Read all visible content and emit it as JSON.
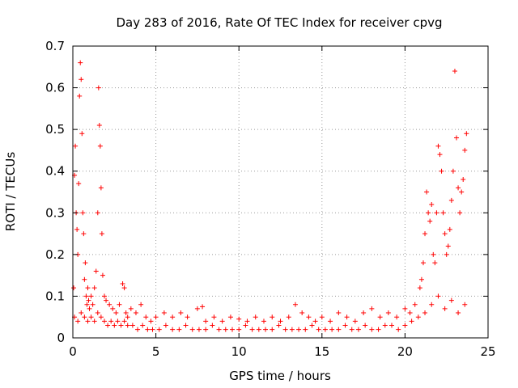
{
  "chart_data": {
    "type": "scatter",
    "title": "Day 283 of 2016, Rate Of TEC Index for receiver cpvg",
    "xlabel": "GPS time / hours",
    "ylabel": "ROTI / TECUs",
    "xlim": [
      0,
      25
    ],
    "ylim": [
      0,
      0.7
    ],
    "xticks": [
      "0",
      "5",
      "10",
      "15",
      "20",
      "25"
    ],
    "yticks": [
      "0",
      "0.1",
      "0.2",
      "0.3",
      "0.4",
      "0.5",
      "0.6",
      "0.7"
    ],
    "grid": true,
    "marker": "+",
    "color": "#ff0000",
    "series": [
      {
        "x": [
          0.05,
          0.1,
          0.15,
          0.2,
          0.25,
          0.3,
          0.35,
          0.4,
          0.45,
          0.5,
          0.55,
          0.6,
          0.65,
          0.7,
          0.75,
          0.8,
          0.85,
          0.9,
          0.95,
          1.0,
          1.1,
          1.2,
          1.3,
          1.4,
          1.5,
          1.55,
          1.6,
          1.65,
          1.7,
          1.75,
          1.8,
          1.9,
          2.0,
          2.2,
          2.4,
          2.6,
          2.8,
          3.0,
          3.1,
          3.2,
          3.3,
          3.5,
          3.8,
          4.1,
          4.4,
          4.7,
          5.0,
          5.5,
          6.0,
          6.5,
          6.9,
          7.5,
          7.8,
          8.0,
          8.5,
          9.0,
          9.5,
          10.0,
          10.5,
          11.0,
          11.5,
          12.0,
          12.5,
          13.0,
          13.4,
          13.8,
          14.2,
          14.6,
          15.0,
          15.5,
          16.0,
          16.5,
          17.0,
          17.5,
          18.0,
          18.5,
          19.0,
          19.5,
          20.0,
          20.3,
          20.6,
          20.9,
          21.0,
          21.1,
          21.2,
          21.3,
          21.4,
          21.5,
          21.6,
          21.7,
          21.8,
          21.9,
          22.0,
          22.1,
          22.2,
          22.3,
          22.4,
          22.5,
          22.6,
          22.7,
          22.8,
          22.9,
          23.0,
          23.1,
          23.2,
          23.3,
          23.4,
          23.5,
          23.6,
          23.7
        ],
        "y": [
          0.12,
          0.39,
          0.46,
          0.3,
          0.26,
          0.2,
          0.37,
          0.58,
          0.66,
          0.62,
          0.49,
          0.3,
          0.25,
          0.14,
          0.18,
          0.1,
          0.08,
          0.12,
          0.09,
          0.07,
          0.1,
          0.08,
          0.12,
          0.16,
          0.3,
          0.6,
          0.51,
          0.46,
          0.36,
          0.25,
          0.15,
          0.1,
          0.09,
          0.08,
          0.07,
          0.06,
          0.08,
          0.13,
          0.12,
          0.06,
          0.05,
          0.07,
          0.06,
          0.08,
          0.05,
          0.04,
          0.05,
          0.06,
          0.05,
          0.06,
          0.05,
          0.07,
          0.075,
          0.04,
          0.05,
          0.04,
          0.05,
          0.045,
          0.04,
          0.05,
          0.04,
          0.05,
          0.04,
          0.05,
          0.08,
          0.06,
          0.05,
          0.04,
          0.05,
          0.04,
          0.06,
          0.05,
          0.04,
          0.06,
          0.07,
          0.05,
          0.06,
          0.05,
          0.07,
          0.06,
          0.08,
          0.12,
          0.14,
          0.18,
          0.25,
          0.35,
          0.3,
          0.28,
          0.32,
          0.2,
          0.18,
          0.3,
          0.46,
          0.44,
          0.4,
          0.3,
          0.25,
          0.2,
          0.22,
          0.26,
          0.33,
          0.4,
          0.64,
          0.48,
          0.36,
          0.3,
          0.35,
          0.38,
          0.45,
          0.49
        ]
      },
      {
        "x": [
          0.1,
          0.3,
          0.5,
          0.7,
          0.9,
          1.1,
          1.3,
          1.5,
          1.7,
          1.9,
          2.1,
          2.3,
          2.5,
          2.7,
          2.9,
          3.1,
          3.3,
          3.6,
          3.9,
          4.2,
          4.5,
          4.8,
          5.2,
          5.6,
          6.0,
          6.4,
          6.8,
          7.2,
          7.6,
          8.0,
          8.4,
          8.8,
          9.2,
          9.6,
          10.0,
          10.4,
          10.8,
          11.2,
          11.6,
          12.0,
          12.4,
          12.8,
          13.2,
          13.6,
          14.0,
          14.4,
          14.8,
          15.2,
          15.6,
          16.0,
          16.4,
          16.8,
          17.2,
          17.6,
          18.0,
          18.4,
          18.8,
          19.2,
          19.6,
          20.0,
          20.4,
          20.8,
          21.2,
          21.6,
          22.0,
          22.4,
          22.8,
          23.2,
          23.6
        ],
        "y": [
          0.05,
          0.04,
          0.06,
          0.05,
          0.04,
          0.05,
          0.04,
          0.06,
          0.05,
          0.04,
          0.03,
          0.04,
          0.03,
          0.04,
          0.03,
          0.04,
          0.03,
          0.03,
          0.02,
          0.03,
          0.02,
          0.02,
          0.02,
          0.03,
          0.02,
          0.02,
          0.03,
          0.02,
          0.02,
          0.02,
          0.03,
          0.02,
          0.02,
          0.02,
          0.02,
          0.03,
          0.02,
          0.02,
          0.02,
          0.02,
          0.03,
          0.02,
          0.02,
          0.02,
          0.02,
          0.03,
          0.02,
          0.02,
          0.02,
          0.02,
          0.03,
          0.02,
          0.02,
          0.03,
          0.02,
          0.02,
          0.03,
          0.03,
          0.02,
          0.03,
          0.04,
          0.05,
          0.06,
          0.08,
          0.1,
          0.07,
          0.09,
          0.06,
          0.08
        ]
      }
    ]
  }
}
